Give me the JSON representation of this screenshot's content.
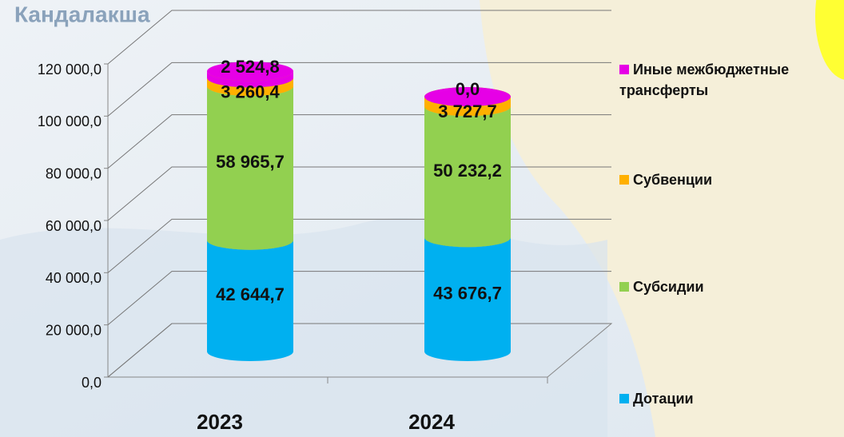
{
  "chart_data": {
    "type": "bar3d_stacked",
    "map_label": "Кандалакша",
    "categories": [
      "2023",
      "2024"
    ],
    "series": [
      {
        "name": "Дотации",
        "color": "#00b0f0",
        "values": [
          42644.7,
          43676.7
        ],
        "value_labels": [
          "42 644,7",
          "43 676,7"
        ]
      },
      {
        "name": "Субсидии",
        "color": "#92d050",
        "values": [
          58965.7,
          50232.2
        ],
        "value_labels": [
          "58 965,7",
          "50 232,2"
        ]
      },
      {
        "name": "Субвенции",
        "color": "#ffb000",
        "values": [
          3260.4,
          3727.7
        ],
        "value_labels": [
          "3 260,4",
          "3 727,7"
        ]
      },
      {
        "name": "Иные межбюджетные трансферты",
        "color": "#e600e6",
        "values": [
          2524.8,
          0.0
        ],
        "value_labels": [
          "2 524,8",
          "0,0"
        ]
      }
    ],
    "ylim": [
      0,
      120000
    ],
    "yticks": [
      {
        "value": 0,
        "label": "0,0"
      },
      {
        "value": 20000,
        "label": "20 000,0"
      },
      {
        "value": 40000,
        "label": "40 000,0"
      },
      {
        "value": 60000,
        "label": "60 000,0"
      },
      {
        "value": 80000,
        "label": "80 000,0"
      },
      {
        "value": 100000,
        "label": "100 000,0"
      },
      {
        "value": 120000,
        "label": "120 000,0"
      }
    ],
    "grid": true
  }
}
